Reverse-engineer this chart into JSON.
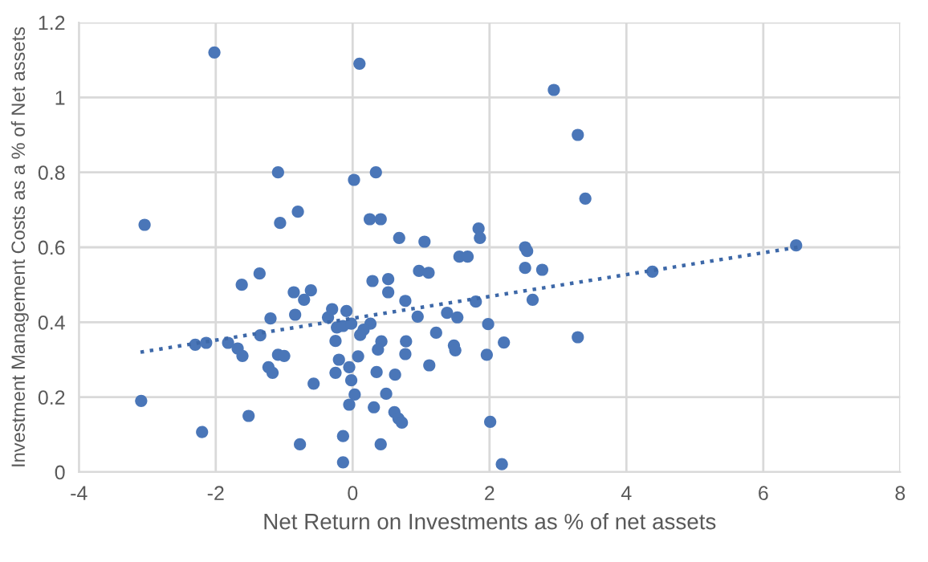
{
  "chart_data": {
    "type": "scatter",
    "xlabel": "Net Return on Investments as % of net assets",
    "ylabel": "Investment Management Costs as a % of Net assets",
    "xlim": [
      -4,
      8
    ],
    "xticks": [
      -4,
      -2,
      0,
      2,
      4,
      6,
      8
    ],
    "ylim": [
      0,
      1.2
    ],
    "yticks": [
      0,
      0.2,
      0.4,
      0.6,
      0.8,
      1,
      1.2
    ],
    "grid": true,
    "marker": "circle",
    "series": [
      {
        "color": "#4a76b8",
        "x": [
          -2.02,
          0.1,
          2.94,
          3.29,
          3.4,
          -1.09,
          0.02,
          0.34,
          -3.04,
          -1.06,
          -0.8,
          0.25,
          0.41,
          0.68,
          1.84,
          1.86,
          1.56,
          1.68,
          2.52,
          2.55,
          2.52,
          2.77,
          2.63,
          3.29,
          4.38,
          6.48,
          1.05,
          -1.62,
          -1.36,
          -0.86,
          -0.71,
          -0.61,
          -1.2,
          -0.84,
          -1.35,
          -2.3,
          -2.14,
          -1.82,
          -1.68,
          -1.61,
          -1.09,
          -1.0,
          -1.23,
          -1.17,
          -3.09,
          -1.52,
          -2.2,
          -0.57,
          -0.77,
          -0.36,
          -0.3,
          -0.25,
          -0.23,
          -0.09,
          -0.14,
          -0.2,
          -0.25,
          -0.05,
          -0.02,
          0.03,
          -0.05,
          -0.14,
          -0.14,
          -0.02,
          0.41,
          0.29,
          0.52,
          0.52,
          0.77,
          0.97,
          1.11,
          1.8,
          0.26,
          0.16,
          0.11,
          0.95,
          1.38,
          1.53,
          1.98,
          1.22,
          0.78,
          0.42,
          0.37,
          1.48,
          1.5,
          2.21,
          0.77,
          1.96,
          0.08,
          1.12,
          0.35,
          0.62,
          0.49,
          0.31,
          0.61,
          0.67,
          0.72,
          2.01,
          2.18
        ],
        "values": [
          1.12,
          1.09,
          1.02,
          0.9,
          0.73,
          0.8,
          0.78,
          0.8,
          0.66,
          0.665,
          0.695,
          0.675,
          0.675,
          0.625,
          0.65,
          0.625,
          0.575,
          0.575,
          0.6,
          0.59,
          0.545,
          0.54,
          0.46,
          0.36,
          0.535,
          0.605,
          0.615,
          0.5,
          0.53,
          0.48,
          0.46,
          0.485,
          0.41,
          0.42,
          0.365,
          0.34,
          0.345,
          0.345,
          0.33,
          0.31,
          0.313,
          0.31,
          0.28,
          0.265,
          0.19,
          0.15,
          0.107,
          0.236,
          0.074,
          0.413,
          0.435,
          0.35,
          0.386,
          0.43,
          0.39,
          0.3,
          0.265,
          0.28,
          0.245,
          0.207,
          0.18,
          0.096,
          0.026,
          0.396,
          0.074,
          0.51,
          0.515,
          0.48,
          0.457,
          0.537,
          0.532,
          0.455,
          0.396,
          0.38,
          0.366,
          0.415,
          0.425,
          0.413,
          0.395,
          0.372,
          0.349,
          0.349,
          0.327,
          0.338,
          0.325,
          0.346,
          0.315,
          0.313,
          0.309,
          0.285,
          0.267,
          0.26,
          0.209,
          0.173,
          0.16,
          0.143,
          0.132,
          0.134,
          0.021
        ]
      },
      {
        "type": "line",
        "color": "#3d68a8",
        "line_style": "dotted",
        "marker": "none",
        "x": [
          -3.1,
          6.5
        ],
        "values": [
          0.32,
          0.6
        ]
      }
    ]
  }
}
